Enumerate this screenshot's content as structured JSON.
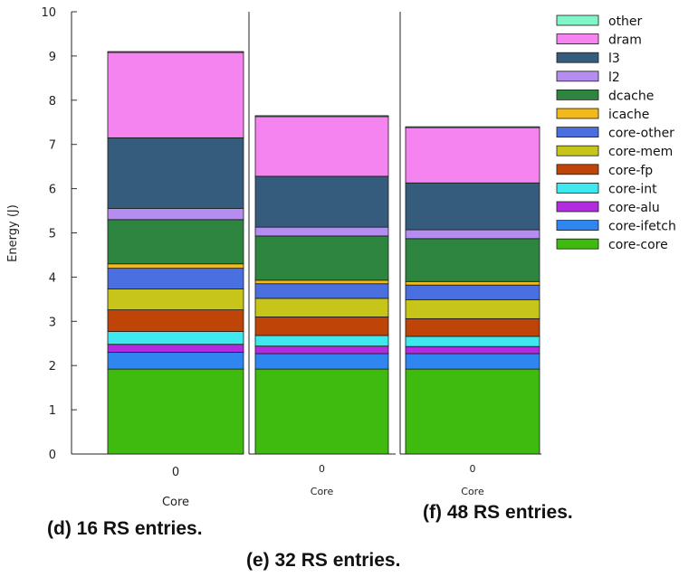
{
  "chart_data": {
    "type": "bar",
    "stacked": true,
    "ylabel": "Energy (J)",
    "ylim": [
      0,
      10
    ],
    "yticks": [
      0,
      1,
      2,
      3,
      4,
      5,
      6,
      7,
      8,
      9,
      10
    ],
    "legend_position": "top-right",
    "panels": [
      {
        "caption": "(d) 16 RS entries.",
        "category": "0",
        "xlabel": "Core",
        "segments": [
          {
            "name": "core-core",
            "value": 1.92
          },
          {
            "name": "core-ifetch",
            "value": 0.38
          },
          {
            "name": "core-alu",
            "value": 0.18
          },
          {
            "name": "core-int",
            "value": 0.29
          },
          {
            "name": "core-fp",
            "value": 0.49
          },
          {
            "name": "core-mem",
            "value": 0.47
          },
          {
            "name": "core-other",
            "value": 0.47
          },
          {
            "name": "icache",
            "value": 0.1
          },
          {
            "name": "dcache",
            "value": 1.0
          },
          {
            "name": "l2",
            "value": 0.25
          },
          {
            "name": "l3",
            "value": 1.6
          },
          {
            "name": "dram",
            "value": 1.93
          },
          {
            "name": "other",
            "value": 0.02
          }
        ]
      },
      {
        "caption": "(e) 32 RS entries.",
        "category": "0",
        "xlabel": "Core",
        "segments": [
          {
            "name": "core-core",
            "value": 1.92
          },
          {
            "name": "core-ifetch",
            "value": 0.35
          },
          {
            "name": "core-alu",
            "value": 0.17
          },
          {
            "name": "core-int",
            "value": 0.24
          },
          {
            "name": "core-fp",
            "value": 0.42
          },
          {
            "name": "core-mem",
            "value": 0.42
          },
          {
            "name": "core-other",
            "value": 0.33
          },
          {
            "name": "icache",
            "value": 0.08
          },
          {
            "name": "dcache",
            "value": 1.0
          },
          {
            "name": "l2",
            "value": 0.2
          },
          {
            "name": "l3",
            "value": 1.15
          },
          {
            "name": "dram",
            "value": 1.35
          },
          {
            "name": "other",
            "value": 0.02
          }
        ]
      },
      {
        "caption": "(f) 48 RS entries.",
        "category": "0",
        "xlabel": "Core",
        "segments": [
          {
            "name": "core-core",
            "value": 1.92
          },
          {
            "name": "core-ifetch",
            "value": 0.35
          },
          {
            "name": "core-alu",
            "value": 0.16
          },
          {
            "name": "core-int",
            "value": 0.23
          },
          {
            "name": "core-fp",
            "value": 0.4
          },
          {
            "name": "core-mem",
            "value": 0.43
          },
          {
            "name": "core-other",
            "value": 0.33
          },
          {
            "name": "icache",
            "value": 0.08
          },
          {
            "name": "dcache",
            "value": 0.97
          },
          {
            "name": "l2",
            "value": 0.2
          },
          {
            "name": "l3",
            "value": 1.06
          },
          {
            "name": "dram",
            "value": 1.25
          },
          {
            "name": "other",
            "value": 0.02
          }
        ]
      }
    ],
    "legend": [
      {
        "name": "other",
        "color": "#7ff5c8"
      },
      {
        "name": "dram",
        "color": "#f584f0"
      },
      {
        "name": "l3",
        "color": "#355c7d"
      },
      {
        "name": "l2",
        "color": "#b58cf0"
      },
      {
        "name": "dcache",
        "color": "#2e8540"
      },
      {
        "name": "icache",
        "color": "#f3b81a"
      },
      {
        "name": "core-other",
        "color": "#4a6fe0"
      },
      {
        "name": "core-mem",
        "color": "#c7c41a"
      },
      {
        "name": "core-fp",
        "color": "#bf4408"
      },
      {
        "name": "core-int",
        "color": "#3fe8ee"
      },
      {
        "name": "core-alu",
        "color": "#b22be0"
      },
      {
        "name": "core-ifetch",
        "color": "#2f86f0"
      },
      {
        "name": "core-core",
        "color": "#3fba0e"
      }
    ]
  }
}
